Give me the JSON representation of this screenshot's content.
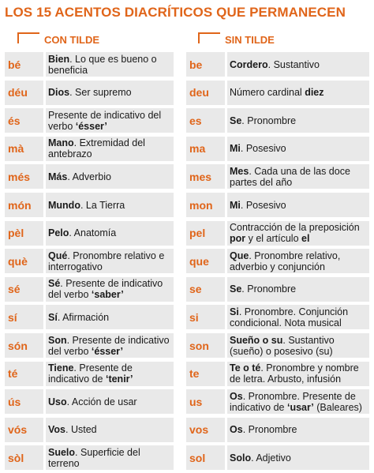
{
  "title": "LOS 15 ACENTOS DIACRÍTICOS QUE PERMANECEN",
  "headers": {
    "left": "CON TILDE",
    "right": "SIN TILDE"
  },
  "left": [
    {
      "word": "bé",
      "bold": "Bien",
      "rest": ". Lo que es bueno o beneficia"
    },
    {
      "word": "déu",
      "bold": "Dios",
      "rest": ". Ser supremo"
    },
    {
      "word": "és",
      "bold": "",
      "rest": "Presente de indicativo del verbo ",
      "bold2": "‘ésser’"
    },
    {
      "word": "mà",
      "bold": "Mano",
      "rest": ". Extremidad del antebrazo"
    },
    {
      "word": "més",
      "bold": "Más",
      "rest": ". Adverbio"
    },
    {
      "word": "món",
      "bold": "Mundo",
      "rest": ". La Tierra"
    },
    {
      "word": "pèl",
      "bold": "Pelo",
      "rest": ". Anatomía"
    },
    {
      "word": "què",
      "bold": "Qué",
      "rest": ". Pronombre relativo e interrogativo"
    },
    {
      "word": "sé",
      "bold": "Sé",
      "rest": ". Presente de indicativo del verbo ",
      "bold2": "‘saber’"
    },
    {
      "word": "sí",
      "bold": "Sí",
      "rest": ". Afirmación"
    },
    {
      "word": "són",
      "bold": "Son",
      "rest": ". Presente de indicativo del verbo ",
      "bold2": "‘ésser’"
    },
    {
      "word": "té",
      "bold": "Tiene",
      "rest": ". Presente de indicativo de ",
      "bold2": "‘tenir’"
    },
    {
      "word": "ús",
      "bold": "Uso",
      "rest": ". Acción de usar"
    },
    {
      "word": "vós",
      "bold": "Vos",
      "rest": ". Usted"
    },
    {
      "word": "sòl",
      "bold": "Suelo",
      "rest": ". Superficie del terreno"
    }
  ],
  "right": [
    {
      "word": "be",
      "bold": "Cordero",
      "rest": ". Sustantivo"
    },
    {
      "word": "deu",
      "bold": "",
      "rest": "Número cardinal ",
      "bold2": "diez"
    },
    {
      "word": "es",
      "bold": "Se",
      "rest": ". Pronombre"
    },
    {
      "word": "ma",
      "bold": "Mi",
      "rest": ". Posesivo"
    },
    {
      "word": "mes",
      "bold": "Mes",
      "rest": ". Cada una de las doce partes del año"
    },
    {
      "word": "mon",
      "bold": "Mi",
      "rest": ". Posesivo"
    },
    {
      "word": "pel",
      "bold": "",
      "rest": "Contracción de la preposición ",
      "bold2": "por",
      "rest2": " y el artículo ",
      "bold3": "el"
    },
    {
      "word": "que",
      "bold": "Que",
      "rest": ". Pronombre relativo, adverbio y conjunción"
    },
    {
      "word": "se",
      "bold": "Se",
      "rest": ". Pronombre"
    },
    {
      "word": "si",
      "bold": "Si",
      "rest": ". Pronombre. Conjunción condicional. Nota musical"
    },
    {
      "word": "son",
      "bold": "Sueño o su",
      "rest": ". Sustantivo (sueño) o posesivo (su)"
    },
    {
      "word": "te",
      "bold": "Te o té",
      "rest": ". Pronombre y nombre de letra. Arbusto, infusión"
    },
    {
      "word": "us",
      "bold": "Os",
      "rest": ". Pronombre. Presente de indicativo de ",
      "bold2": "‘usar’",
      "rest2": " (Baleares)"
    },
    {
      "word": "vos",
      "bold": "Os",
      "rest": ". Pronombre"
    },
    {
      "word": "sol",
      "bold": "Solo",
      "rest": ". Adjetivo"
    }
  ]
}
